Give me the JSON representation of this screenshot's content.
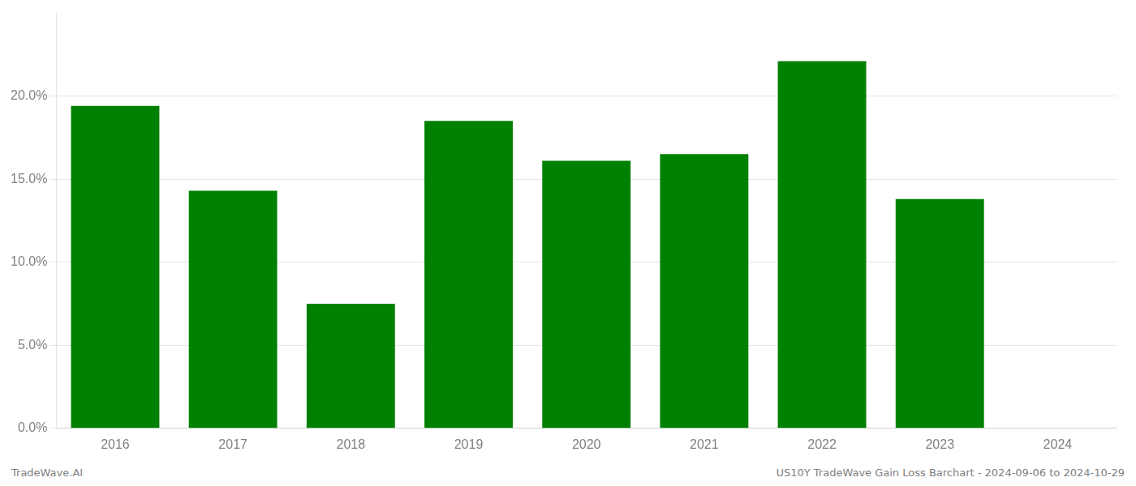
{
  "chart_data": {
    "type": "bar",
    "categories": [
      "2016",
      "2017",
      "2018",
      "2019",
      "2020",
      "2021",
      "2022",
      "2023",
      "2024"
    ],
    "values": [
      0.194,
      0.143,
      0.075,
      0.185,
      0.161,
      0.165,
      0.221,
      0.138,
      0.0
    ],
    "color": "#008000",
    "ylim": [
      0,
      0.25
    ],
    "yticks": [
      {
        "value": 0.0,
        "label": "0.0%"
      },
      {
        "value": 0.05,
        "label": "5.0%"
      },
      {
        "value": 0.1,
        "label": "10.0%"
      },
      {
        "value": 0.15,
        "label": "15.0%"
      },
      {
        "value": 0.2,
        "label": "20.0%"
      }
    ],
    "grid": true,
    "annotations": [
      "TradeWave.AI",
      "US10Y TradeWave Gain Loss Barchart - 2024-09-06 to 2024-10-29"
    ]
  }
}
